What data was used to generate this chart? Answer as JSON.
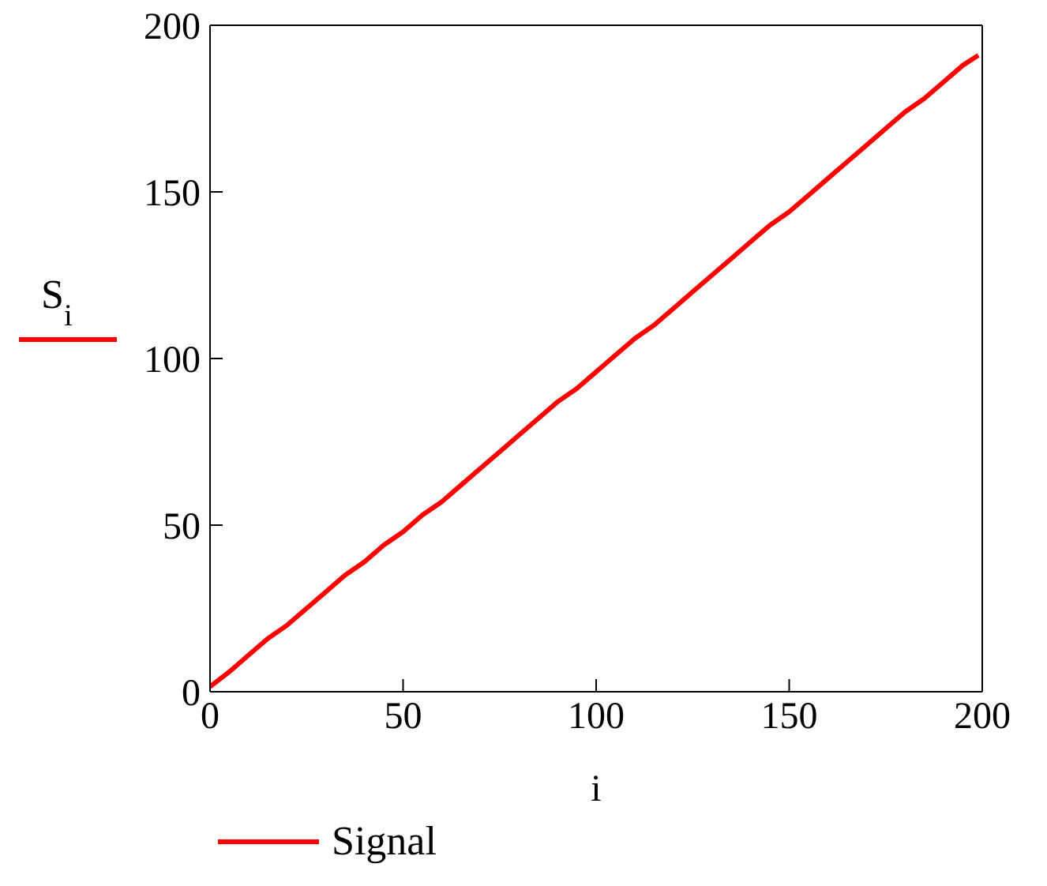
{
  "chart_data": {
    "type": "line",
    "xlabel": "i",
    "ylabel": "S$_{i}$",
    "x": [
      0,
      5,
      10,
      15,
      20,
      25,
      30,
      35,
      40,
      45,
      50,
      55,
      60,
      65,
      70,
      75,
      80,
      85,
      90,
      95,
      100,
      105,
      110,
      115,
      120,
      125,
      130,
      135,
      140,
      145,
      150,
      155,
      160,
      165,
      170,
      175,
      180,
      185,
      190,
      195,
      199
    ],
    "series": [
      {
        "name": "Signal",
        "color": "#ff0000",
        "values": [
          1.5,
          6,
          11,
          16,
          20,
          25,
          30,
          35,
          39,
          44,
          48,
          53,
          57,
          62,
          67,
          72,
          77,
          82,
          87,
          91,
          96,
          101,
          106,
          110,
          115,
          120,
          125,
          130,
          135,
          140,
          144,
          149,
          154,
          159,
          164,
          169,
          174,
          178,
          183,
          188,
          191
        ]
      }
    ],
    "xlim": [
      0,
      200
    ],
    "xticks": [
      0,
      50,
      100,
      150,
      200
    ],
    "ylim": [
      0,
      200
    ],
    "yticks": [
      0,
      50,
      100,
      150,
      200
    ],
    "legend": "bottom left",
    "line_style": "solid",
    "marker": "none"
  }
}
